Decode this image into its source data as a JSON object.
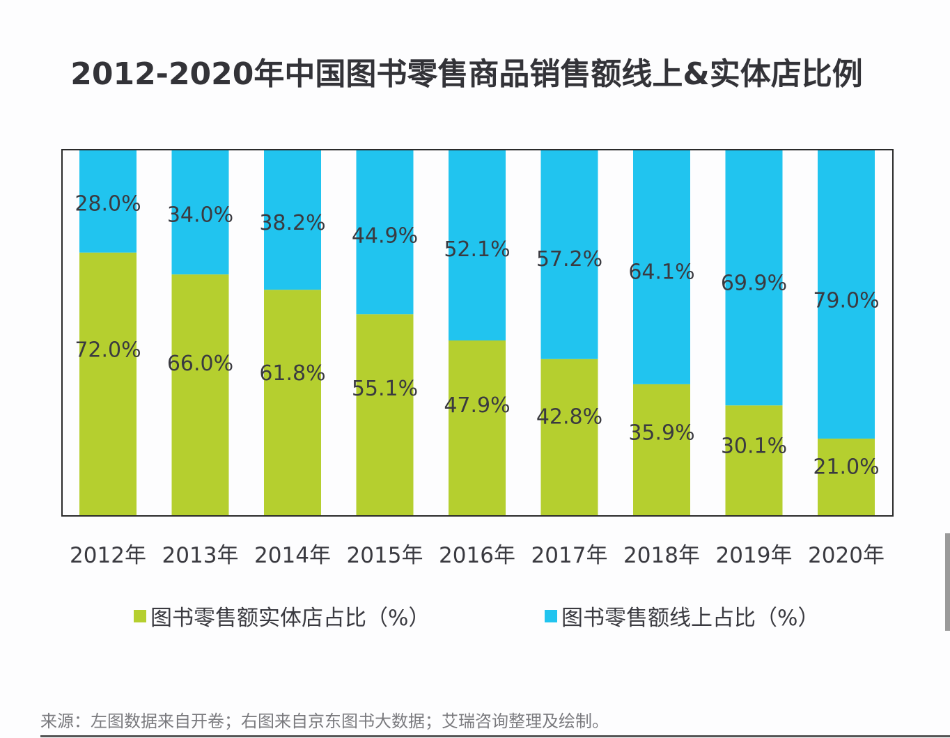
{
  "chart_data": {
    "type": "bar",
    "stacked": true,
    "normalized": true,
    "title": "2012-2020年中国图书零售商品销售额线上&实体店比例",
    "xlabel": "",
    "ylabel": "",
    "ylim": [
      0,
      100
    ],
    "grid": false,
    "legend_position": "bottom",
    "categories": [
      "2012年",
      "2013年",
      "2014年",
      "2015年",
      "2016年",
      "2017年",
      "2018年",
      "2019年",
      "2020年"
    ],
    "series": [
      {
        "name": "图书零售额实体店占比（%）",
        "color": "#b5cf2f",
        "values": [
          72.0,
          66.0,
          61.8,
          55.1,
          47.9,
          42.8,
          35.9,
          30.1,
          21.0
        ],
        "labels": [
          "72.0%",
          "66.0%",
          "61.8%",
          "55.1%",
          "47.9%",
          "42.8%",
          "35.9%",
          "30.1%",
          "21.0%"
        ]
      },
      {
        "name": "图书零售额线上占比（%）",
        "color": "#21c4ef",
        "values": [
          28.0,
          34.0,
          38.2,
          44.9,
          52.1,
          57.2,
          64.1,
          69.9,
          79.0
        ],
        "labels": [
          "28.0%",
          "34.0%",
          "38.2%",
          "44.9%",
          "52.1%",
          "57.2%",
          "64.1%",
          "69.9%",
          "79.0%"
        ]
      }
    ]
  },
  "source_note": "来源：左图数据来自开卷；右图来自京东图书大数据；艾瑞咨询整理及绘制。"
}
